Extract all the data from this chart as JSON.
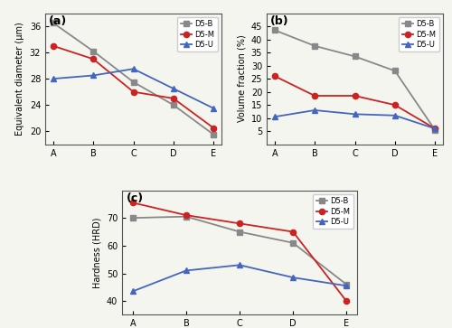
{
  "categories": [
    "A",
    "B",
    "C",
    "D",
    "E"
  ],
  "plot_a": {
    "title": "(a)",
    "ylabel": "Equivalent diameter (μm)",
    "D5B": [
      36.5,
      32.2,
      27.5,
      24.0,
      19.5
    ],
    "D5M": [
      33.0,
      31.0,
      26.0,
      25.0,
      20.5
    ],
    "D5U": [
      28.0,
      28.5,
      29.5,
      26.5,
      23.5
    ],
    "ylim": [
      18,
      38
    ],
    "yticks": [
      20,
      24,
      28,
      32,
      36
    ]
  },
  "plot_b": {
    "title": "(b)",
    "ylabel": "Volume fraction (%)",
    "D5B": [
      43.5,
      37.5,
      33.5,
      28.0,
      5.5
    ],
    "D5M": [
      26.0,
      18.5,
      18.5,
      15.0,
      6.0
    ],
    "D5U": [
      10.5,
      13.0,
      11.5,
      11.0,
      6.0
    ],
    "ylim": [
      0,
      50
    ],
    "yticks": [
      5,
      10,
      15,
      20,
      25,
      30,
      35,
      40,
      45
    ]
  },
  "plot_c": {
    "title": "(c)",
    "ylabel": "Hardness (HRD)",
    "D5B": [
      70.0,
      70.5,
      65.0,
      61.0,
      46.0
    ],
    "D5M": [
      75.5,
      71.0,
      68.0,
      65.0,
      40.0
    ],
    "D5U": [
      43.5,
      51.0,
      53.0,
      48.5,
      45.5
    ],
    "ylim": [
      35,
      80
    ],
    "yticks": [
      40,
      50,
      60,
      70
    ]
  },
  "colors": {
    "D5B": "#888888",
    "D5M": "#cc2222",
    "D5U": "#4466bb"
  },
  "markers": {
    "D5B": "s",
    "D5M": "o",
    "D5U": "^"
  },
  "linewidth": 1.3,
  "markersize": 4.5,
  "bg_color": "#f5f5f0"
}
